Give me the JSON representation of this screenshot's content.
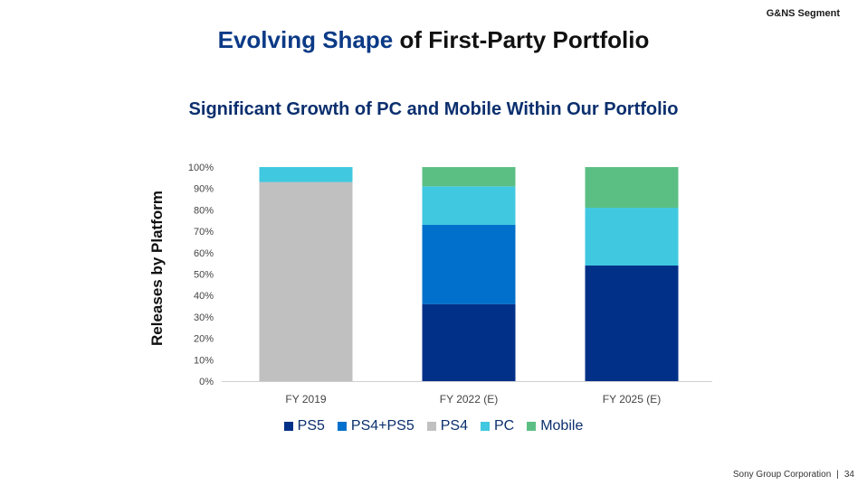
{
  "header": {
    "segment": "G&NS Segment",
    "title_accent": "Evolving Shape",
    "title_rest": " of First-Party Portfolio",
    "subtitle": "Significant Growth of PC and Mobile Within Our Portfolio"
  },
  "footer": {
    "company": "Sony Group Corporation",
    "separator": "|",
    "page": "34"
  },
  "colors": {
    "PS5": "#003087",
    "PS4+PS5": "#0070cc",
    "PS4": "#c0c0c0",
    "PC": "#40c8e0",
    "Mobile": "#5bbf84"
  },
  "chart_data": {
    "type": "bar",
    "stacked": true,
    "title": "Significant Growth of PC and Mobile Within Our Portfolio",
    "xlabel": "",
    "ylabel": "Releases by Platform",
    "ylim": [
      0,
      100
    ],
    "y_ticks": [
      "0%",
      "10%",
      "20%",
      "30%",
      "40%",
      "50%",
      "60%",
      "70%",
      "80%",
      "90%",
      "100%"
    ],
    "categories": [
      "FY 2019",
      "FY 2022 (E)",
      "FY 2025 (E)"
    ],
    "series": [
      {
        "name": "PS5",
        "values": [
          0,
          36,
          54
        ]
      },
      {
        "name": "PS4+PS5",
        "values": [
          0,
          37,
          0
        ]
      },
      {
        "name": "PS4",
        "values": [
          93,
          0,
          0
        ]
      },
      {
        "name": "PC",
        "values": [
          7,
          18,
          27
        ]
      },
      {
        "name": "Mobile",
        "values": [
          0,
          9,
          19
        ]
      }
    ],
    "legend_position": "bottom",
    "grid": false
  }
}
